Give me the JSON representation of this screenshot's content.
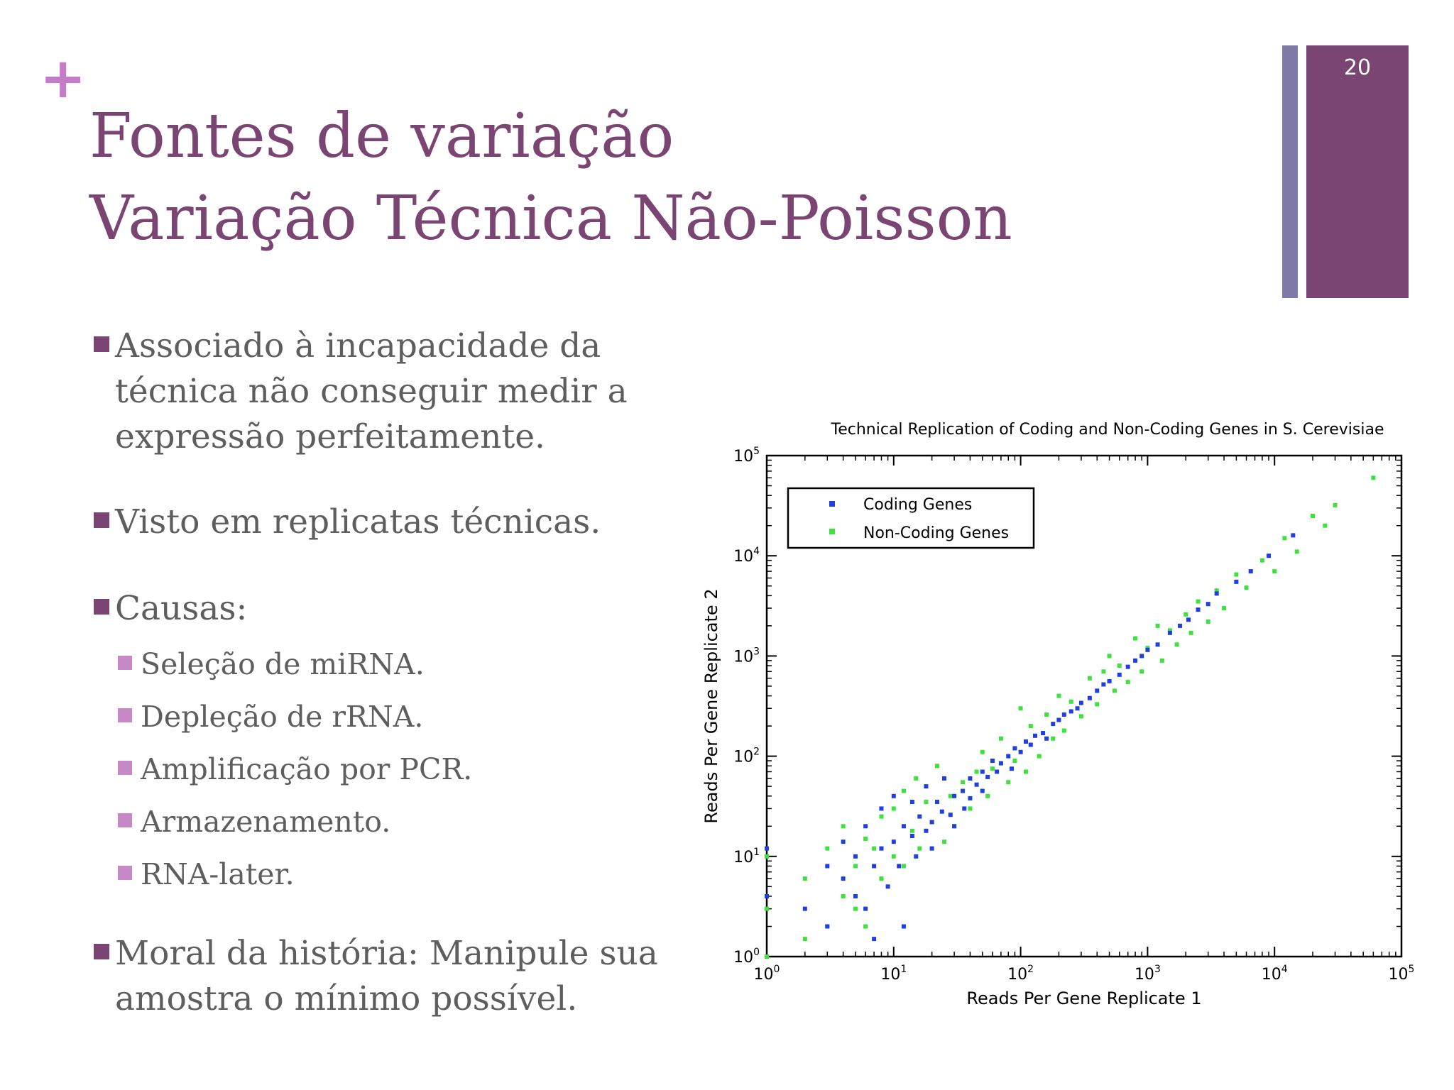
{
  "slide": {
    "number": "20",
    "plus": "+",
    "title_line1": "Fontes de variação",
    "title_line2": "Variação Técnica Não-Poisson"
  },
  "bullets": {
    "item1": "Associado à incapacidade da técnica não conseguir medir a expressão perfeitamente.",
    "item2": "Visto em replicatas técnicas.",
    "item3": "Causas:",
    "sub": [
      "Seleção de miRNA.",
      "Depleção de rRNA.",
      "Amplificação por PCR.",
      "Armazenamento.",
      "RNA-later."
    ],
    "item4": "Moral da história: Manipule sua amostra o mínimo possível."
  },
  "colors": {
    "title": "#7b4573",
    "accent_bar": "#7b4573",
    "secondary_bar": "#7d7aa8",
    "plus": "#c47cc6",
    "bullet_main": "#7b4573",
    "bullet_sub": "#c589c8",
    "coding": "#1f3fe0",
    "noncoding": "#3de23d"
  },
  "chart_data": {
    "type": "scatter",
    "title": "Technical Replication of Coding and Non-Coding Genes in S. Cerevisiae",
    "xlabel": "Reads Per Gene Replicate 1",
    "ylabel": "Reads Per Gene Replicate 2",
    "x_scale": "log",
    "y_scale": "log",
    "xlim": [
      1,
      100000
    ],
    "ylim": [
      1,
      100000
    ],
    "x_ticks": [
      "10^0",
      "10^1",
      "10^2",
      "10^3",
      "10^4",
      "10^5"
    ],
    "y_ticks": [
      "10^0",
      "10^1",
      "10^2",
      "10^3",
      "10^4",
      "10^5"
    ],
    "legend_position": "top-left",
    "grid": false,
    "series": [
      {
        "name": "Coding Genes",
        "color": "#1f3fe0",
        "points": [
          [
            1,
            12
          ],
          [
            1,
            4
          ],
          [
            2,
            3
          ],
          [
            3,
            2
          ],
          [
            3,
            8
          ],
          [
            4,
            14
          ],
          [
            4,
            6
          ],
          [
            5,
            4
          ],
          [
            5,
            10
          ],
          [
            6,
            20
          ],
          [
            6,
            3
          ],
          [
            7,
            8
          ],
          [
            7,
            1.5
          ],
          [
            8,
            12
          ],
          [
            8,
            30
          ],
          [
            9,
            5
          ],
          [
            10,
            14
          ],
          [
            10,
            40
          ],
          [
            11,
            8
          ],
          [
            12,
            20
          ],
          [
            12,
            2
          ],
          [
            14,
            16
          ],
          [
            14,
            35
          ],
          [
            15,
            10
          ],
          [
            16,
            25
          ],
          [
            18,
            18
          ],
          [
            18,
            50
          ],
          [
            20,
            22
          ],
          [
            20,
            12
          ],
          [
            22,
            35
          ],
          [
            24,
            28
          ],
          [
            25,
            60
          ],
          [
            28,
            26
          ],
          [
            30,
            40
          ],
          [
            30,
            20
          ],
          [
            35,
            45
          ],
          [
            36,
            30
          ],
          [
            40,
            60
          ],
          [
            40,
            38
          ],
          [
            45,
            52
          ],
          [
            50,
            70
          ],
          [
            50,
            45
          ],
          [
            55,
            62
          ],
          [
            60,
            90
          ],
          [
            65,
            70
          ],
          [
            70,
            85
          ],
          [
            80,
            100
          ],
          [
            85,
            75
          ],
          [
            90,
            120
          ],
          [
            100,
            110
          ],
          [
            110,
            140
          ],
          [
            120,
            130
          ],
          [
            130,
            160
          ],
          [
            150,
            170
          ],
          [
            160,
            150
          ],
          [
            180,
            210
          ],
          [
            200,
            230
          ],
          [
            220,
            260
          ],
          [
            250,
            280
          ],
          [
            280,
            300
          ],
          [
            300,
            340
          ],
          [
            350,
            380
          ],
          [
            400,
            450
          ],
          [
            450,
            520
          ],
          [
            500,
            560
          ],
          [
            600,
            650
          ],
          [
            700,
            780
          ],
          [
            800,
            900
          ],
          [
            900,
            1000
          ],
          [
            1000,
            1150
          ],
          [
            1200,
            1300
          ],
          [
            1500,
            1700
          ],
          [
            1800,
            2000
          ],
          [
            2100,
            2300
          ],
          [
            2500,
            2900
          ],
          [
            3000,
            3300
          ],
          [
            3500,
            4200
          ],
          [
            5000,
            5500
          ],
          [
            6500,
            7000
          ],
          [
            9000,
            10000
          ],
          [
            14000,
            16000
          ]
        ]
      },
      {
        "name": "Non-Coding Genes",
        "color": "#3de23d",
        "points": [
          [
            1,
            1
          ],
          [
            1,
            3
          ],
          [
            1,
            10
          ],
          [
            2,
            1.5
          ],
          [
            2,
            6
          ],
          [
            3,
            2
          ],
          [
            3,
            12
          ],
          [
            4,
            20
          ],
          [
            4,
            4
          ],
          [
            5,
            3
          ],
          [
            5,
            8
          ],
          [
            6,
            15
          ],
          [
            6,
            2
          ],
          [
            7,
            12
          ],
          [
            8,
            6
          ],
          [
            8,
            25
          ],
          [
            10,
            10
          ],
          [
            10,
            30
          ],
          [
            12,
            8
          ],
          [
            12,
            45
          ],
          [
            14,
            18
          ],
          [
            15,
            60
          ],
          [
            16,
            12
          ],
          [
            18,
            35
          ],
          [
            20,
            22
          ],
          [
            22,
            80
          ],
          [
            25,
            14
          ],
          [
            28,
            40
          ],
          [
            30,
            20
          ],
          [
            35,
            55
          ],
          [
            40,
            30
          ],
          [
            45,
            70
          ],
          [
            50,
            110
          ],
          [
            55,
            40
          ],
          [
            60,
            75
          ],
          [
            70,
            150
          ],
          [
            80,
            55
          ],
          [
            90,
            90
          ],
          [
            100,
            300
          ],
          [
            110,
            70
          ],
          [
            120,
            200
          ],
          [
            140,
            100
          ],
          [
            160,
            260
          ],
          [
            180,
            150
          ],
          [
            200,
            400
          ],
          [
            220,
            180
          ],
          [
            250,
            350
          ],
          [
            300,
            250
          ],
          [
            350,
            600
          ],
          [
            400,
            330
          ],
          [
            450,
            700
          ],
          [
            500,
            1000
          ],
          [
            550,
            450
          ],
          [
            600,
            800
          ],
          [
            700,
            550
          ],
          [
            800,
            1500
          ],
          [
            900,
            700
          ],
          [
            1000,
            1200
          ],
          [
            1200,
            2000
          ],
          [
            1300,
            900
          ],
          [
            1500,
            1800
          ],
          [
            1700,
            1300
          ],
          [
            2000,
            2600
          ],
          [
            2200,
            1700
          ],
          [
            2500,
            3500
          ],
          [
            3000,
            2200
          ],
          [
            3500,
            4500
          ],
          [
            4000,
            3000
          ],
          [
            5000,
            6500
          ],
          [
            6000,
            4800
          ],
          [
            8000,
            9000
          ],
          [
            10000,
            7000
          ],
          [
            12000,
            15000
          ],
          [
            15000,
            11000
          ],
          [
            20000,
            25000
          ],
          [
            25000,
            20000
          ],
          [
            30000,
            32000
          ],
          [
            60000,
            60000
          ]
        ]
      }
    ]
  }
}
